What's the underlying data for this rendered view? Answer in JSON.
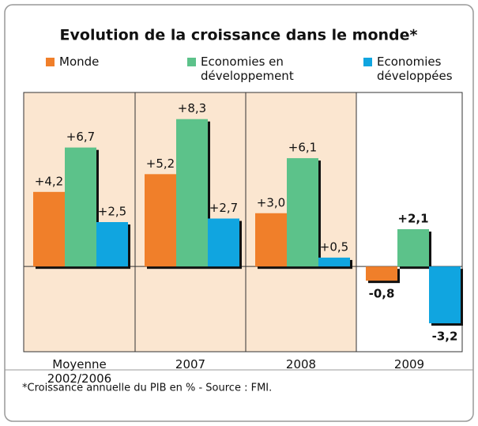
{
  "chart_data": {
    "type": "bar",
    "title": "Evolution de la croissance dans le monde*",
    "categories": [
      "Moyenne 2002/2006",
      "2007",
      "2008",
      "2009"
    ],
    "series": [
      {
        "name": "Monde",
        "color": "#f07f2a",
        "values": [
          4.2,
          5.2,
          3.0,
          -0.8
        ],
        "value_labels": [
          "+4,2",
          "+5,2",
          "+3,0",
          "-0,8"
        ]
      },
      {
        "name": "Economies en développement",
        "color": "#5cc28a",
        "values": [
          6.7,
          8.3,
          6.1,
          2.1
        ],
        "value_labels": [
          "+6,7",
          "+8,3",
          "+6,1",
          "+2,1"
        ]
      },
      {
        "name": "Economies développées",
        "color": "#10a5e0",
        "values": [
          2.5,
          2.7,
          0.5,
          -3.2
        ],
        "value_labels": [
          "+2,5",
          "+2,7",
          "+0,5",
          "-3,2"
        ]
      }
    ],
    "ylim": [
      -4.8,
      9.8
    ],
    "footnote": "*Croissance annuelle du PIB en % - Source : FMI."
  }
}
